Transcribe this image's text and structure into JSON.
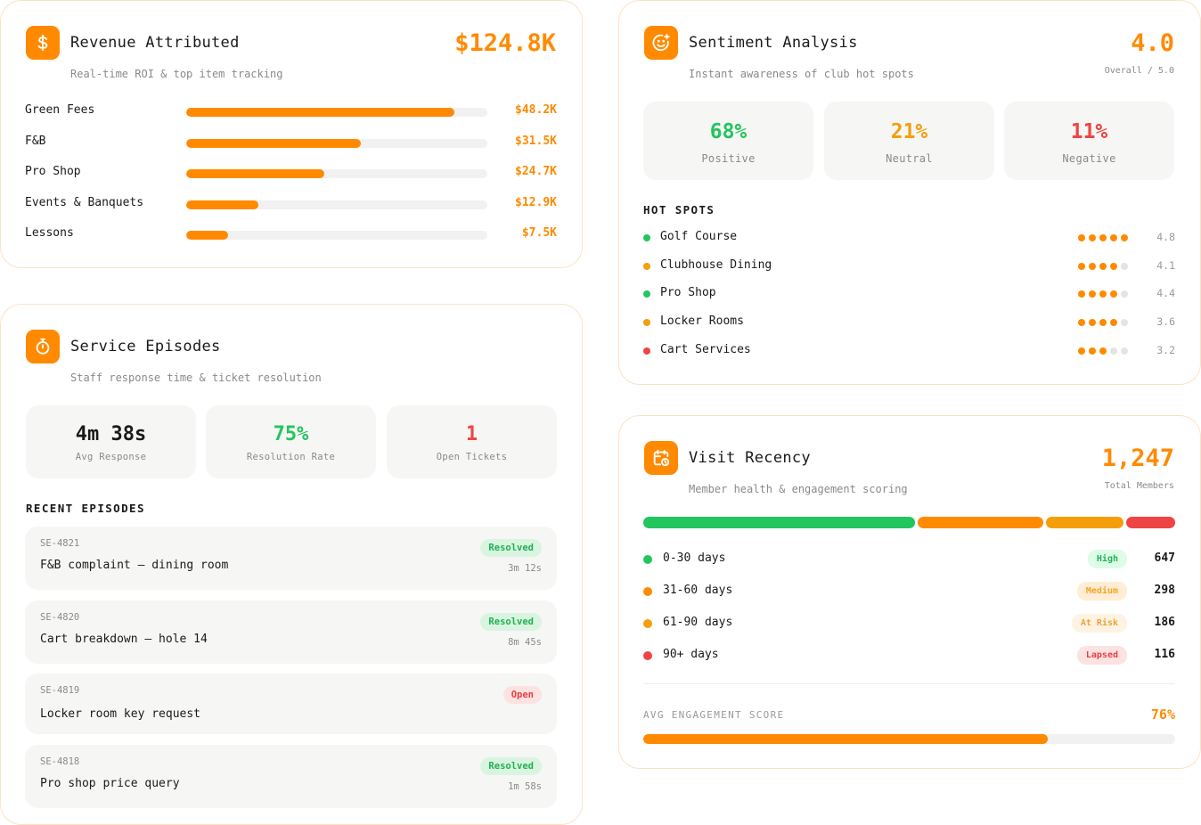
{
  "colors": {
    "accent": "#ff8a00",
    "green": "#22c55e",
    "amber": "#f59e0b",
    "red": "#ef4444"
  },
  "revenue": {
    "icon": "dollar-icon",
    "title": "Revenue Attributed",
    "subtitle": "Real-time ROI & top item tracking",
    "total": "$124.8K",
    "items": [
      {
        "label": "Green Fees",
        "value": "$48.2K",
        "fraction": 0.89
      },
      {
        "label": "F&B",
        "value": "$31.5K",
        "fraction": 0.58
      },
      {
        "label": "Pro Shop",
        "value": "$24.7K",
        "fraction": 0.46
      },
      {
        "label": "Events & Banquets",
        "value": "$12.9K",
        "fraction": 0.24
      },
      {
        "label": "Lessons",
        "value": "$7.5K",
        "fraction": 0.14
      }
    ]
  },
  "service": {
    "icon": "stopwatch-icon",
    "title": "Service Episodes",
    "subtitle": "Staff response time & ticket resolution",
    "stats": [
      {
        "value": "4m 38s",
        "label": "Avg Response"
      },
      {
        "value": "75%",
        "label": "Resolution Rate"
      },
      {
        "value": "1",
        "label": "Open Tickets"
      }
    ],
    "recent_heading": "RECENT EPISODES",
    "episodes": [
      {
        "id": "SE-4821",
        "title": "F&B complaint — dining room",
        "status": "Resolved",
        "time": "3m 12s"
      },
      {
        "id": "SE-4820",
        "title": "Cart breakdown — hole 14",
        "status": "Resolved",
        "time": "8m 45s"
      },
      {
        "id": "SE-4819",
        "title": "Locker room key request",
        "status": "Open",
        "time": ""
      },
      {
        "id": "SE-4818",
        "title": "Pro shop price query",
        "status": "Resolved",
        "time": "1m 58s"
      }
    ]
  },
  "sentiment": {
    "icon": "smiley-icon",
    "title": "Sentiment Analysis",
    "subtitle": "Instant awareness of club hot spots",
    "overall": "4.0",
    "overall_caption": "Overall / 5.0",
    "breakdown": [
      {
        "value": "68%",
        "label": "Positive"
      },
      {
        "value": "21%",
        "label": "Neutral"
      },
      {
        "value": "11%",
        "label": "Negative"
      }
    ],
    "hot_spots_heading": "HOT SPOTS",
    "hot_spots": [
      {
        "name": "Golf Course",
        "score": "4.8",
        "dots": 5,
        "status": "green"
      },
      {
        "name": "Clubhouse Dining",
        "score": "4.1",
        "dots": 4,
        "status": "amber"
      },
      {
        "name": "Pro Shop",
        "score": "4.4",
        "dots": 4,
        "status": "green"
      },
      {
        "name": "Locker Rooms",
        "score": "3.6",
        "dots": 4,
        "status": "amber"
      },
      {
        "name": "Cart Services",
        "score": "3.2",
        "dots": 3,
        "status": "red"
      }
    ]
  },
  "recency": {
    "icon": "calendar-clock-icon",
    "title": "Visit Recency",
    "subtitle": "Member health & engagement scoring",
    "total": "1,247",
    "total_caption": "Total Members",
    "segments": [
      {
        "label": "0-30 days",
        "badge": "High",
        "count": "647",
        "color": "#22c55e",
        "badge_bg": "#dcfce7",
        "badge_fg": "#22b152"
      },
      {
        "label": "31-60 days",
        "badge": "Medium",
        "count": "298",
        "color": "#ff8a00",
        "badge_bg": "#ffedd5",
        "badge_fg": "#f5a524"
      },
      {
        "label": "61-90 days",
        "badge": "At Risk",
        "count": "186",
        "color": "#f59e0b",
        "badge_bg": "#fef3e2",
        "badge_fg": "#e9a23b"
      },
      {
        "label": "90+ days",
        "badge": "Lapsed",
        "count": "116",
        "color": "#ef4444",
        "badge_bg": "#fde2e2",
        "badge_fg": "#e44141"
      }
    ],
    "engagement_label": "AVG ENGAGEMENT SCORE",
    "engagement_value": "76%",
    "engagement_fraction": 0.76
  }
}
